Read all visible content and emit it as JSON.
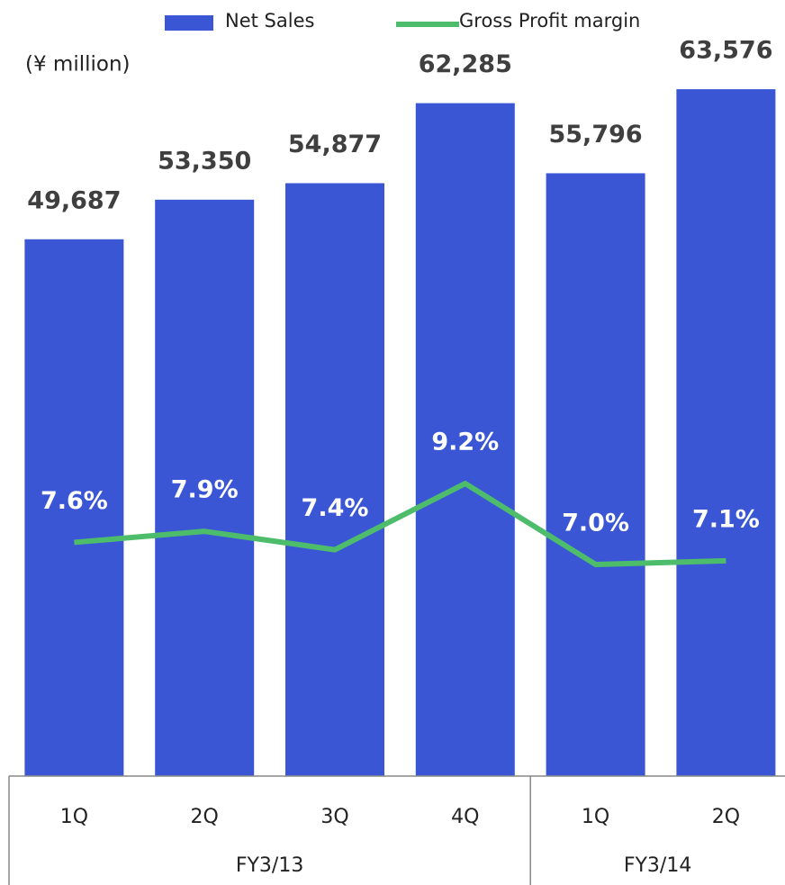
{
  "chart_data": {
    "type": "bar",
    "unit_label": "(¥ million)",
    "categories": [
      "1Q",
      "2Q",
      "3Q",
      "4Q",
      "1Q",
      "2Q"
    ],
    "groups": [
      {
        "name": "FY3/13",
        "count": 4
      },
      {
        "name": "FY3/14",
        "count": 2
      }
    ],
    "ylim": [
      0,
      70000
    ],
    "y2lim": [
      1.25,
      21.8
    ],
    "series": [
      {
        "name": "Net Sales",
        "type": "bar",
        "color": "#3a56d4",
        "values": [
          49687,
          53350,
          54877,
          62285,
          55796,
          63576
        ],
        "value_labels": [
          "49,687",
          "53,350",
          "54,877",
          "62,285",
          "55,796",
          "63,576"
        ]
      },
      {
        "name": "Gross Profit margin",
        "type": "line",
        "axis": "y2",
        "color": "#4dbd6c",
        "values": [
          7.6,
          7.9,
          7.4,
          9.2,
          7.0,
          7.1
        ],
        "value_labels": [
          "7.6%",
          "7.9%",
          "7.4%",
          "9.2%",
          "7.0%",
          "7.1%"
        ]
      }
    ]
  }
}
